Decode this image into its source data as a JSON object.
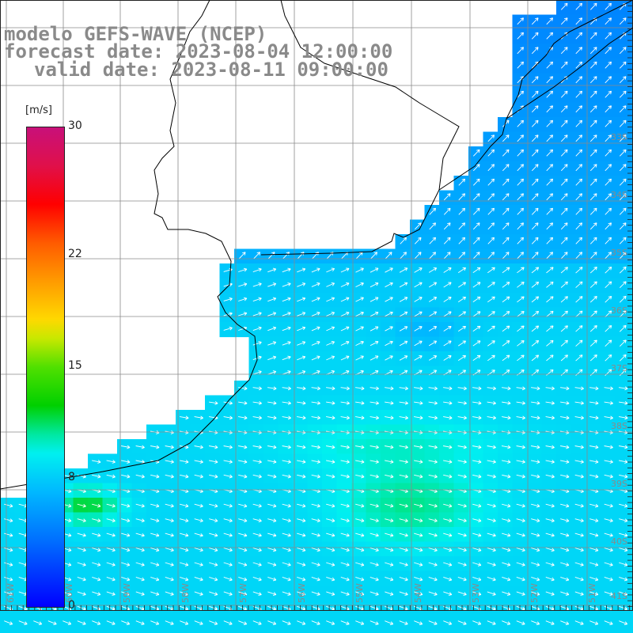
{
  "title": {
    "line1": "modelo GEFS-WAVE (NCEP)",
    "line2": "forecast date: 2023-08-04 12:00:00",
    "line3": "valid date: 2023-08-11 09:00:00"
  },
  "colorbar": {
    "unit": "[m/s]",
    "min": 0,
    "max": 30,
    "ticks": [
      {
        "label": "30",
        "value": 30
      },
      {
        "label": "22",
        "value": 22
      },
      {
        "label": "15",
        "value": 15
      },
      {
        "label": "8",
        "value": 8
      },
      {
        "label": "0",
        "value": 0
      }
    ]
  },
  "map": {
    "lat_labels": [
      "33S",
      "34S",
      "35S",
      "36S",
      "37S",
      "38S",
      "39S",
      "40S",
      "41S"
    ],
    "lon_labels": [
      "61W",
      "60W",
      "59W",
      "58W",
      "57W",
      "56W",
      "55W",
      "54W",
      "53W",
      "52W",
      "51W"
    ],
    "colors": {
      "land": "#ffffff",
      "grid": "#8a8a8a",
      "coast": "#000000",
      "vector": "#ffffff"
    }
  }
}
